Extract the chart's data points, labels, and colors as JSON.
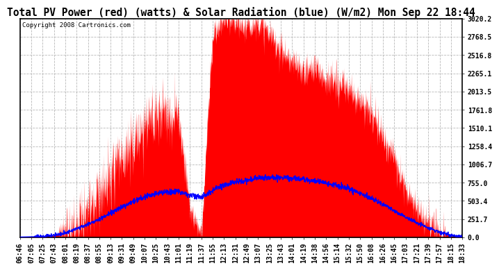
{
  "title": "Total PV Power (red) (watts) & Solar Radiation (blue) (W/m2) Mon Sep 22 18:44",
  "copyright": "Copyright 2008 Cartronics.com",
  "ymax": 3020.2,
  "yticks": [
    0.0,
    251.7,
    503.4,
    755.0,
    1006.7,
    1258.4,
    1510.1,
    1761.8,
    2013.5,
    2265.1,
    2516.8,
    2768.5,
    3020.2
  ],
  "ytick_labels": [
    "0.0",
    "251.7",
    "503.4",
    "755.0",
    "1006.7",
    "1258.4",
    "1510.1",
    "1761.8",
    "2013.5",
    "2265.1",
    "2516.8",
    "2768.5",
    "3020.2"
  ],
  "xtick_labels": [
    "06:46",
    "07:05",
    "07:25",
    "07:43",
    "08:01",
    "08:19",
    "08:37",
    "08:55",
    "09:13",
    "09:31",
    "09:49",
    "10:07",
    "10:25",
    "10:43",
    "11:01",
    "11:19",
    "11:37",
    "11:55",
    "12:13",
    "12:31",
    "12:49",
    "13:07",
    "13:25",
    "13:43",
    "14:01",
    "14:19",
    "14:38",
    "14:56",
    "15:14",
    "15:32",
    "15:50",
    "16:08",
    "16:26",
    "16:45",
    "17:03",
    "17:21",
    "17:39",
    "17:57",
    "18:15",
    "18:33"
  ],
  "bg_color": "#ffffff",
  "plot_bg": "#ffffff",
  "red_color": "#ff0000",
  "blue_color": "#0000ff",
  "grid_color": "#b0b0b0",
  "title_fontsize": 10.5,
  "tick_fontsize": 7,
  "copyright_fontsize": 6.5,
  "pv_values": [
    0,
    5,
    15,
    30,
    80,
    150,
    350,
    600,
    900,
    1100,
    1300,
    1500,
    1650,
    1700,
    1680,
    400,
    50,
    2800,
    3020,
    2950,
    2900,
    3010,
    2800,
    2600,
    2400,
    2300,
    2350,
    2200,
    2100,
    2050,
    1900,
    1700,
    1400,
    1100,
    700,
    400,
    200,
    80,
    20,
    0
  ],
  "solar_values": [
    5,
    8,
    15,
    30,
    60,
    120,
    180,
    250,
    340,
    420,
    500,
    560,
    600,
    630,
    640,
    580,
    550,
    650,
    720,
    760,
    790,
    820,
    830,
    825,
    820,
    800,
    780,
    750,
    710,
    670,
    610,
    540,
    460,
    370,
    280,
    200,
    130,
    70,
    30,
    8
  ]
}
